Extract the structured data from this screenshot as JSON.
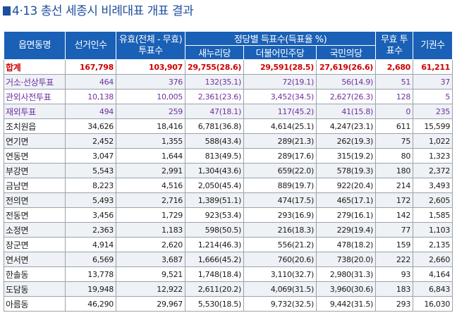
{
  "title": "4·13 총선 세종시 비례대표 개표 결과",
  "headers": {
    "district": "읍면동명",
    "voters": "선거인수",
    "valid": "유효(전체 - 무효)투표수",
    "party_group": "정당별 득표수(득표율 %)",
    "parties": [
      "새누리당",
      "더불어민주당",
      "국민의당"
    ],
    "invalid": "무효 투표수",
    "abstain": "기권수"
  },
  "rows": [
    {
      "type": "total",
      "cells": [
        "합계",
        "167,798",
        "103,907",
        "29,755(28.6)",
        "29,591(28.5)",
        "27,619(26.6)",
        "2,680",
        "61,211"
      ]
    },
    {
      "type": "purple",
      "cells": [
        "거소·선상투표",
        "464",
        "376",
        "132(35.1)",
        "72(19.1)",
        "56(14.9)",
        "51",
        "37"
      ]
    },
    {
      "type": "purple",
      "cells": [
        "관외사전투표",
        "10,138",
        "10,005",
        "2,361(23.6)",
        "3,452(34.5)",
        "2,627(26.3)",
        "128",
        "5"
      ]
    },
    {
      "type": "purple",
      "cells": [
        "재외투표",
        "494",
        "259",
        "47(18.1)",
        "117(45.2)",
        "41(15.8)",
        "0",
        "235"
      ]
    },
    {
      "type": "normal",
      "cells": [
        "조치원읍",
        "34,626",
        "18,416",
        "6,781(36.8)",
        "4,614(25.1)",
        "4,247(23.1)",
        "611",
        "15,599"
      ]
    },
    {
      "type": "normal",
      "cells": [
        "연기면",
        "2,452",
        "1,355",
        "588(43.4)",
        "289(21.3)",
        "262(19.3)",
        "75",
        "1,022"
      ]
    },
    {
      "type": "normal",
      "cells": [
        "연동면",
        "3,047",
        "1,644",
        "813(49.5)",
        "289(17.6)",
        "315(19.2)",
        "80",
        "1,323"
      ]
    },
    {
      "type": "normal",
      "cells": [
        "부강면",
        "5,543",
        "2,991",
        "1,304(43.6)",
        "659(22.0)",
        "578(19.3)",
        "180",
        "2,372"
      ]
    },
    {
      "type": "normal",
      "cells": [
        "금남면",
        "8,223",
        "4,516",
        "2,050(45.4)",
        "889(19.7)",
        "922(20.4)",
        "214",
        "3,493"
      ]
    },
    {
      "type": "normal",
      "cells": [
        "전의면",
        "5,493",
        "2,716",
        "1,389(51.1)",
        "474(17.5)",
        "465(17.1)",
        "172",
        "2,605"
      ]
    },
    {
      "type": "normal",
      "cells": [
        "전동면",
        "3,456",
        "1,729",
        "923(53.4)",
        "293(16.9)",
        "279(16.1)",
        "142",
        "1,585"
      ]
    },
    {
      "type": "normal",
      "cells": [
        "소정면",
        "2,363",
        "1,183",
        "598(50.5)",
        "216(18.3)",
        "229(19.4)",
        "77",
        "1,103"
      ]
    },
    {
      "type": "normal",
      "cells": [
        "장군면",
        "4,914",
        "2,620",
        "1,214(46.3)",
        "556(21.2)",
        "478(18.2)",
        "159",
        "2,135"
      ]
    },
    {
      "type": "normal",
      "cells": [
        "연서면",
        "6,569",
        "3,687",
        "1,666(45.2)",
        "760(20.6)",
        "738(20.0)",
        "222",
        "2,660"
      ]
    },
    {
      "type": "normal",
      "cells": [
        "한솔동",
        "13,778",
        "9,521",
        "1,748(18.4)",
        "3,110(32.7)",
        "2,980(31.3)",
        "93",
        "4,164"
      ]
    },
    {
      "type": "normal",
      "cells": [
        "도담동",
        "19,948",
        "12,922",
        "2,611(20.2)",
        "4,069(31.5)",
        "3,960(30.6)",
        "183",
        "6,843"
      ]
    },
    {
      "type": "normal",
      "cells": [
        "아름동",
        "46,290",
        "29,967",
        "5,530(18.5)",
        "9,732(32.5)",
        "9,442(31.5)",
        "293",
        "16,030"
      ]
    }
  ]
}
